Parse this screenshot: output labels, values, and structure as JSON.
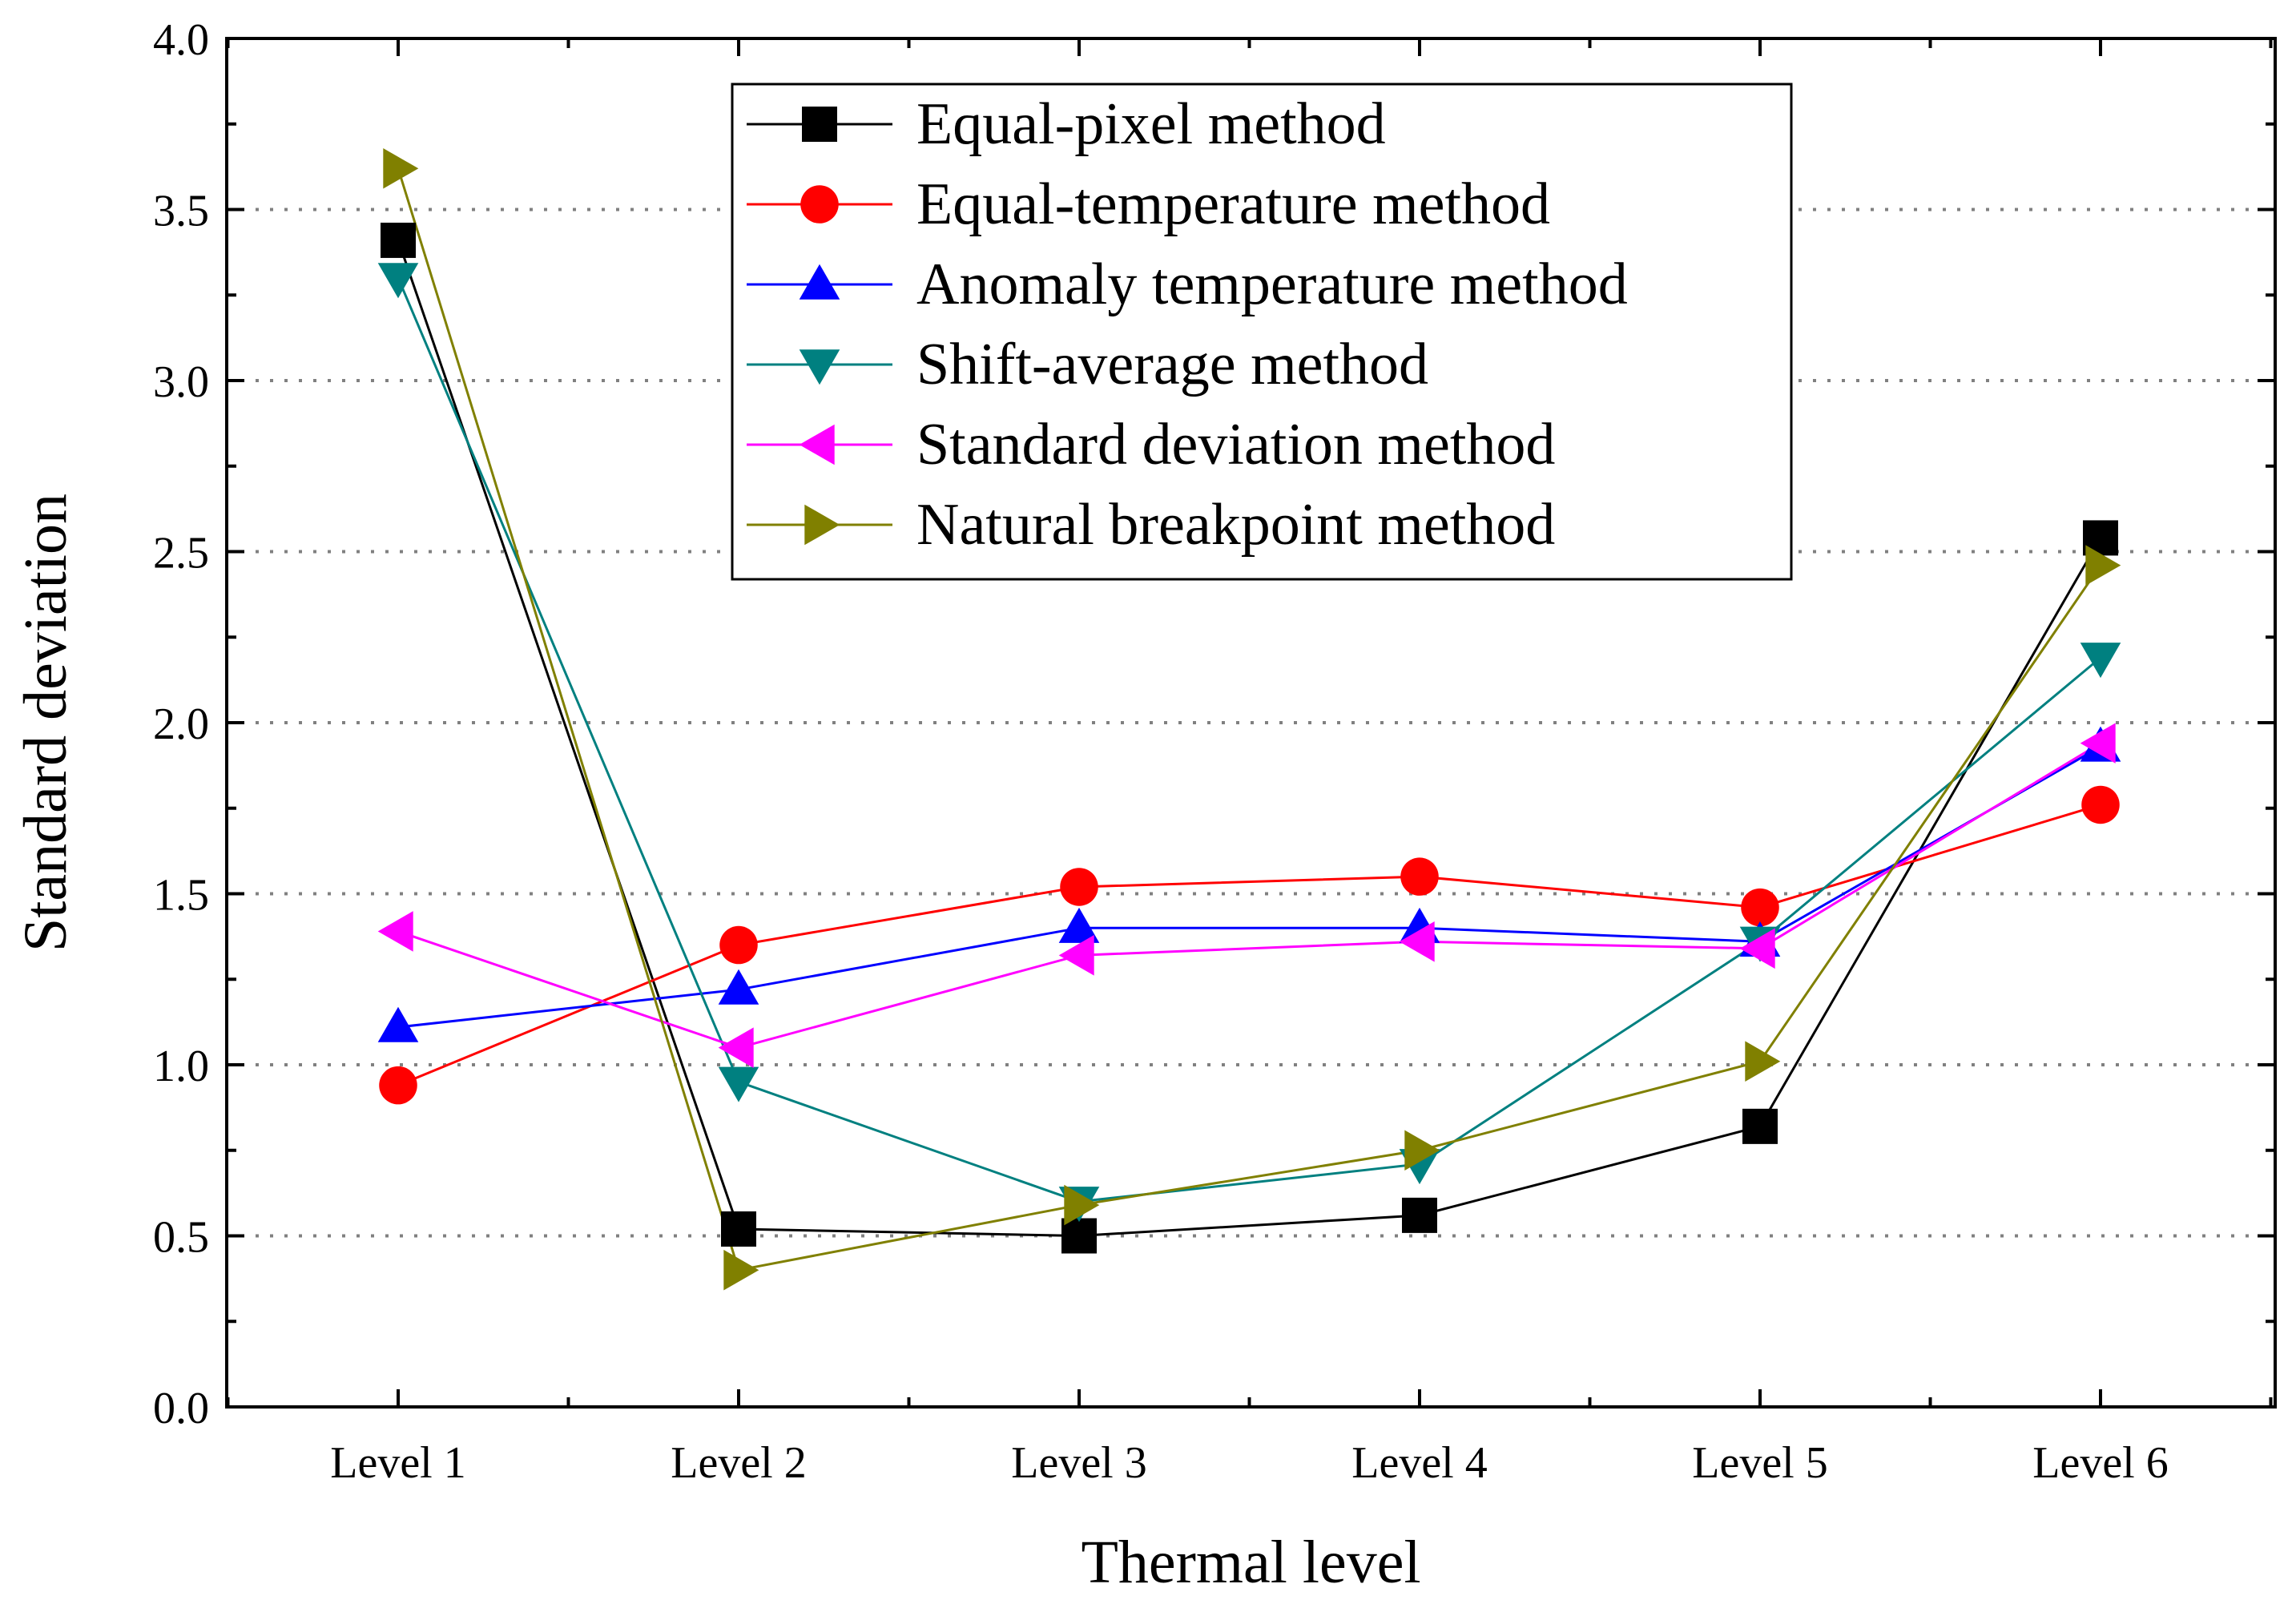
{
  "chart_data": {
    "type": "line",
    "title": "",
    "xlabel": "Thermal level",
    "ylabel": "Standard deviation",
    "categories": [
      "Level 1",
      "Level 2",
      "Level 3",
      "Level 4",
      "Level 5",
      "Level 6"
    ],
    "ylim": [
      0.0,
      4.0
    ],
    "yticks": [
      "0.0",
      "0.5",
      "1.0",
      "1.5",
      "2.0",
      "2.5",
      "3.0",
      "3.5",
      "4.0"
    ],
    "grid": "horizontal dotted",
    "legend_position": "top-center",
    "series": [
      {
        "name": "Equal-pixel method",
        "color": "#000000",
        "marker": "square",
        "values": [
          3.41,
          0.52,
          0.5,
          0.56,
          0.82,
          2.54
        ]
      },
      {
        "name": "Equal-temperature method",
        "color": "#ff0000",
        "marker": "circle",
        "values": [
          0.94,
          1.35,
          1.52,
          1.55,
          1.46,
          1.76
        ]
      },
      {
        "name": "Anomaly temperature method",
        "color": "#0000ff",
        "marker": "triangle-up",
        "values": [
          1.11,
          1.22,
          1.4,
          1.4,
          1.36,
          1.93
        ]
      },
      {
        "name": "Shift-average method",
        "color": "#008080",
        "marker": "triangle-down",
        "values": [
          3.3,
          0.95,
          0.6,
          0.71,
          1.36,
          2.19
        ]
      },
      {
        "name": "Standard deviation method",
        "color": "#ff00ff",
        "marker": "triangle-left",
        "values": [
          1.39,
          1.05,
          1.32,
          1.36,
          1.34,
          1.94
        ]
      },
      {
        "name": "Natural breakpoint method",
        "color": "#808000",
        "marker": "triangle-right",
        "values": [
          3.62,
          0.4,
          0.59,
          0.75,
          1.01,
          2.46
        ]
      }
    ]
  }
}
